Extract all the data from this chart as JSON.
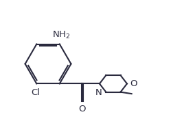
{
  "bg_color": "#ffffff",
  "line_color": "#2a2a3e",
  "bond_width": 1.5,
  "font_size": 9.5,
  "figure_size": [
    2.49,
    1.77
  ],
  "dpi": 100,
  "xlim": [
    0.0,
    10.0
  ],
  "ylim": [
    0.5,
    7.5
  ]
}
